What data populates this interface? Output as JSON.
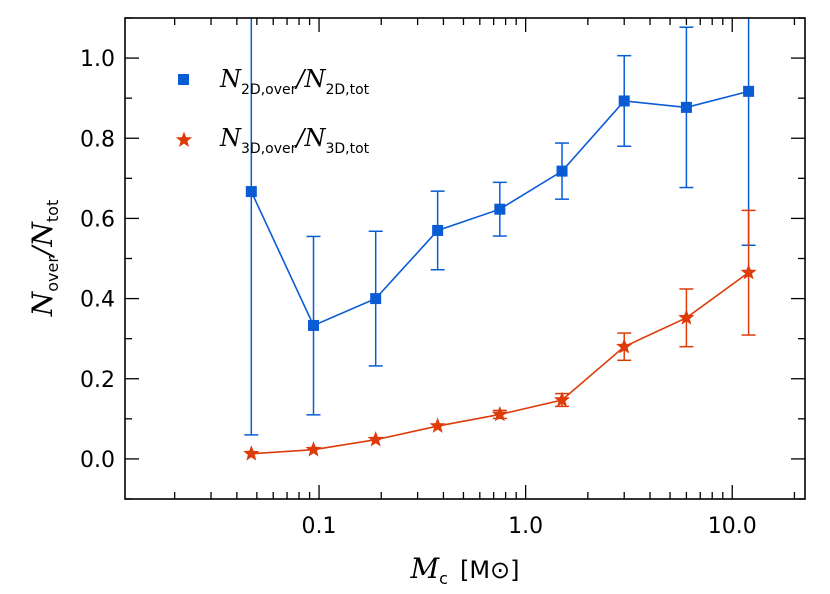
{
  "chart_data": {
    "type": "line",
    "xscale": "log",
    "xlim": [
      0.0115,
      22.5
    ],
    "ylim": [
      -0.1,
      1.1
    ],
    "x_ticks": [
      {
        "value": 0.1,
        "label": "0.1"
      },
      {
        "value": 1.0,
        "label": "1.0"
      },
      {
        "value": 10.0,
        "label": "10.0"
      }
    ],
    "y_ticks": [
      {
        "value": 0.0,
        "label": "0.0"
      },
      {
        "value": 0.2,
        "label": "0.2"
      },
      {
        "value": 0.4,
        "label": "0.4"
      },
      {
        "value": 0.6,
        "label": "0.6"
      },
      {
        "value": 0.8,
        "label": "0.8"
      },
      {
        "value": 1.0,
        "label": "1.0"
      }
    ],
    "xlabel": {
      "main": "M",
      "sub": "c",
      "unit_open": "[M",
      "unit_close": "]"
    },
    "ylabel": {
      "num": "N",
      "num_sub": "over",
      "slash": "/",
      "den": "N",
      "den_sub": "tot"
    },
    "legend_position": "top-left",
    "series": [
      {
        "name": "N2D,over/N2D,tot",
        "legend": {
          "a": "N",
          "a_sub": "2D,over",
          "slash": "/",
          "b": "N",
          "b_sub": "2D,tot"
        },
        "marker": "square",
        "color": "#0a5cd4",
        "points": [
          {
            "x": 0.047,
            "y": 0.667,
            "ylo": 0.06,
            "yhi": 1.12
          },
          {
            "x": 0.094,
            "y": 0.333,
            "ylo": 0.11,
            "yhi": 0.555
          },
          {
            "x": 0.188,
            "y": 0.4,
            "ylo": 0.232,
            "yhi": 0.568
          },
          {
            "x": 0.375,
            "y": 0.57,
            "ylo": 0.472,
            "yhi": 0.668
          },
          {
            "x": 0.75,
            "y": 0.623,
            "ylo": 0.556,
            "yhi": 0.69
          },
          {
            "x": 1.5,
            "y": 0.718,
            "ylo": 0.648,
            "yhi": 0.788
          },
          {
            "x": 3.0,
            "y": 0.893,
            "ylo": 0.78,
            "yhi": 1.006
          },
          {
            "x": 6.0,
            "y": 0.877,
            "ylo": 0.677,
            "yhi": 1.077
          },
          {
            "x": 12.0,
            "y": 0.917,
            "ylo": 0.533,
            "yhi": 1.12
          }
        ]
      },
      {
        "name": "N3D,over/N3D,tot",
        "legend": {
          "a": "N",
          "a_sub": "3D,over",
          "slash": "/",
          "b": "N",
          "b_sub": "3D,tot"
        },
        "marker": "star",
        "color": "#dd3c0a",
        "points": [
          {
            "x": 0.047,
            "y": 0.013
          },
          {
            "x": 0.094,
            "y": 0.023
          },
          {
            "x": 0.188,
            "y": 0.048
          },
          {
            "x": 0.375,
            "y": 0.082
          },
          {
            "x": 0.75,
            "y": 0.111,
            "ylo": 0.101,
            "yhi": 0.121
          },
          {
            "x": 1.5,
            "y": 0.147,
            "ylo": 0.131,
            "yhi": 0.163
          },
          {
            "x": 3.0,
            "y": 0.28,
            "ylo": 0.246,
            "yhi": 0.314
          },
          {
            "x": 6.0,
            "y": 0.352,
            "ylo": 0.28,
            "yhi": 0.424
          },
          {
            "x": 12.0,
            "y": 0.465,
            "ylo": 0.309,
            "yhi": 0.62
          }
        ]
      }
    ]
  }
}
